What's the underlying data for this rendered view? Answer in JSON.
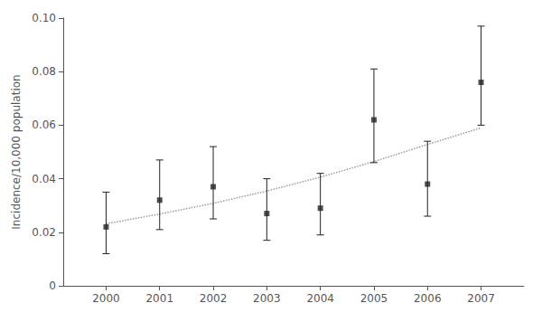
{
  "chart_data": {
    "type": "scatter",
    "ylabel": "Incidence/10,000 population",
    "x": [
      2000,
      2001,
      2002,
      2003,
      2004,
      2005,
      2006,
      2007
    ],
    "series": [
      {
        "type": "line",
        "line_style": "dotted",
        "color": "#999999",
        "values": [
          0.0232,
          0.0268,
          0.0308,
          0.0354,
          0.0406,
          0.0464,
          0.0528,
          0.059
        ]
      },
      {
        "type": "scatter",
        "marker": "square",
        "color": "#222222",
        "values": [
          0.022,
          0.032,
          0.037,
          0.027,
          0.029,
          0.062,
          0.038,
          0.076
        ],
        "ci_lower": [
          0.012,
          0.021,
          0.025,
          0.017,
          0.019,
          0.046,
          0.026,
          0.06
        ],
        "ci_upper": [
          0.035,
          0.047,
          0.052,
          0.04,
          0.042,
          0.081,
          0.054,
          0.097
        ]
      }
    ],
    "xlim": [
      1999.2,
      2007.8
    ],
    "xticks": [
      2000,
      2001,
      2002,
      2003,
      2004,
      2005,
      2006,
      2007
    ],
    "ylim": [
      0,
      0.1
    ],
    "yticks": [
      0,
      0.02,
      0.04,
      0.06,
      0.08,
      {
        "value": 0.1,
        "label": "0.10"
      }
    ],
    "grid": false
  }
}
